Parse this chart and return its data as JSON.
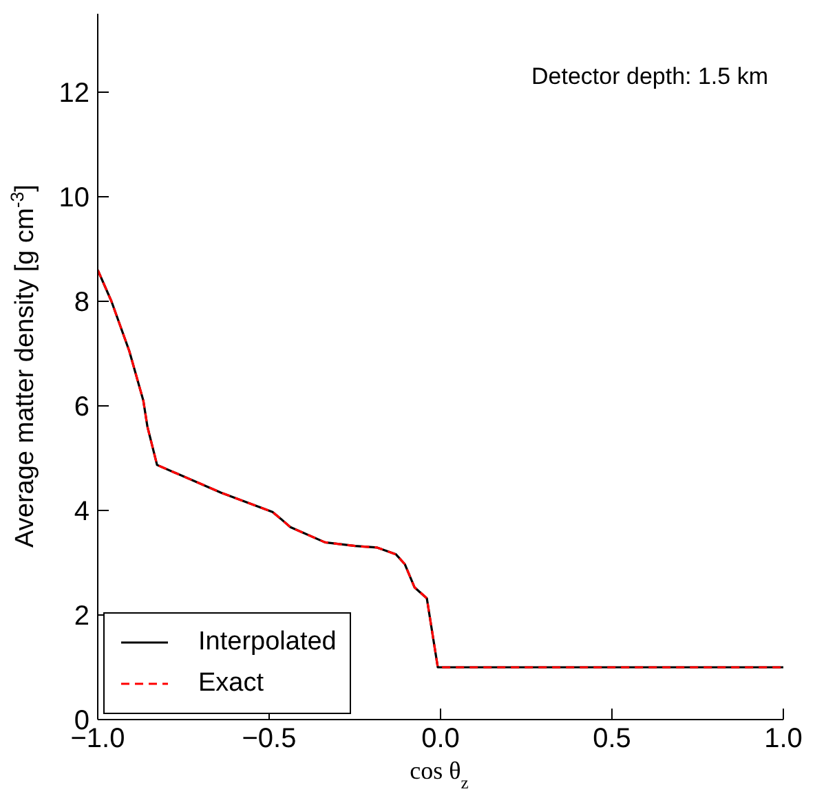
{
  "chart_data": {
    "type": "line",
    "xlabel": "cos θ$_{z}$",
    "ylabel": "Average matter density [g cm$^{-3}$]",
    "annotations": [
      "Detector depth: 1.5 km"
    ],
    "x": [
      -1,
      -0.96,
      -0.908,
      -0.867,
      -0.855,
      -0.827,
      -0.64,
      -0.49,
      -0.466,
      -0.438,
      -0.337,
      -0.249,
      -0.185,
      -0.13,
      -0.104,
      -0.076,
      -0.04,
      -0.008,
      1
    ],
    "series": [
      {
        "name": "Interpolated",
        "color": "#000000",
        "line_style": "solid",
        "values": [
          8.6,
          8.0,
          7.05,
          6.1,
          5.6,
          4.87,
          4.34,
          3.97,
          3.84,
          3.68,
          3.39,
          3.32,
          3.29,
          3.16,
          2.97,
          2.53,
          2.32,
          1.0,
          1.0
        ]
      },
      {
        "name": "Exact",
        "color": "#ff0000",
        "line_style": "dashed",
        "values": [
          8.6,
          8.0,
          7.05,
          6.1,
          5.6,
          4.87,
          4.34,
          3.97,
          3.84,
          3.68,
          3.39,
          3.32,
          3.29,
          3.16,
          2.97,
          2.53,
          2.32,
          1.0,
          1.0
        ]
      }
    ],
    "xlim": [
      -1,
      1
    ],
    "xticks": [
      {
        "value": -1,
        "label": "−1.0"
      },
      {
        "value": -0.5,
        "label": "−0.5"
      },
      {
        "value": 0,
        "label": "0.0"
      },
      {
        "value": 0.5,
        "label": "0.5"
      },
      {
        "value": 1,
        "label": "1.0"
      }
    ],
    "ylim": [
      0,
      13.5
    ],
    "yticks": [
      0,
      2,
      4,
      6,
      8,
      10,
      12
    ],
    "grid": false,
    "legend": "bottom left",
    "marker": "none"
  }
}
